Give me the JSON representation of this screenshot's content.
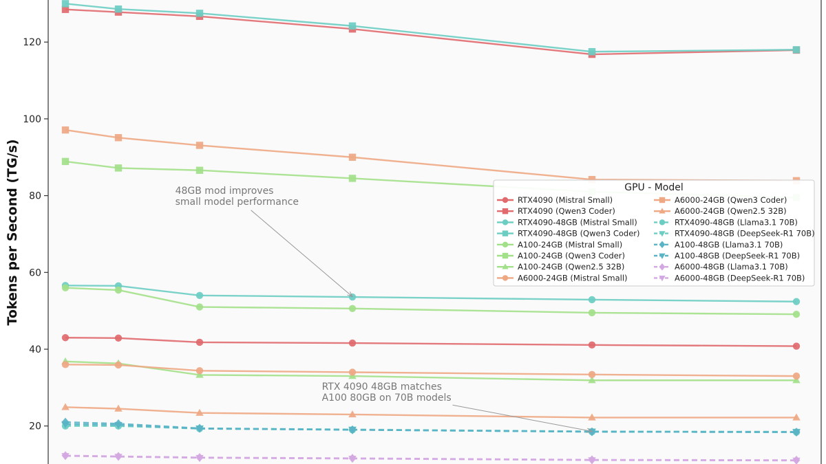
{
  "chart_data": {
    "type": "line",
    "ylabel": "Tokens per Second (TG/s)",
    "xlabel": "",
    "title": "",
    "ylim": [
      10,
      137
    ],
    "yticks": [
      20,
      40,
      60,
      80,
      100,
      120
    ],
    "grid": false,
    "x": [
      1,
      2,
      3,
      4,
      5,
      6
    ],
    "legend": {
      "title": "GPU - Model",
      "placement": "right",
      "columns": 2
    },
    "series": [
      {
        "name": "RTX4090 (Mistral Small)",
        "color": "#e06a6e",
        "marker": "circle",
        "dashed": false,
        "values": [
          43.0,
          42.9,
          41.8,
          41.6,
          41.1,
          40.8
        ]
      },
      {
        "name": "RTX4090 (Qwen3 Coder)",
        "color": "#e06a6e",
        "marker": "square",
        "dashed": false,
        "values": [
          128.5,
          127.8,
          126.7,
          123.4,
          116.8,
          117.9
        ]
      },
      {
        "name": "RTX4090-48GB (Mistral Small)",
        "color": "#6ccdc3",
        "marker": "circle",
        "dashed": false,
        "values": [
          56.6,
          56.5,
          54.0,
          53.6,
          52.9,
          52.4
        ]
      },
      {
        "name": "RTX4090-48GB (Qwen3 Coder)",
        "color": "#6ccdc3",
        "marker": "square",
        "dashed": false,
        "values": [
          130.0,
          128.6,
          127.5,
          124.2,
          117.5,
          118.0
        ]
      },
      {
        "name": "A100-24GB (Mistral Small)",
        "color": "#a3e08a",
        "marker": "circle",
        "dashed": false,
        "values": [
          56.0,
          55.4,
          51.0,
          50.6,
          49.5,
          49.1
        ]
      },
      {
        "name": "A100-24GB (Qwen3 Coder)",
        "color": "#a3e08a",
        "marker": "square",
        "dashed": false,
        "values": [
          88.9,
          87.2,
          86.6,
          84.5,
          81.0,
          79.5
        ]
      },
      {
        "name": "A100-24GB (Qwen2.5 32B)",
        "color": "#a3e08a",
        "marker": "triangle-up",
        "dashed": false,
        "values": [
          36.8,
          36.3,
          33.3,
          33.0,
          31.9,
          31.9
        ]
      },
      {
        "name": "A6000-24GB (Mistral Small)",
        "color": "#eea884",
        "marker": "circle",
        "dashed": false,
        "values": [
          36.0,
          35.9,
          34.4,
          34.0,
          33.4,
          33.0
        ]
      },
      {
        "name": "A6000-24GB (Qwen3 Coder)",
        "color": "#eea884",
        "marker": "square",
        "dashed": false,
        "values": [
          97.1,
          95.1,
          93.1,
          90.0,
          84.2,
          83.9
        ]
      },
      {
        "name": "A6000-24GB (Qwen2.5 32B)",
        "color": "#eea884",
        "marker": "triangle-up",
        "dashed": false,
        "values": [
          24.9,
          24.5,
          23.4,
          23.0,
          22.2,
          22.2
        ]
      },
      {
        "name": "RTX4090-48GB (Llama3.1 70B)",
        "color": "#6ccdc3",
        "marker": "circle",
        "dashed": true,
        "values": [
          20.0,
          20.0,
          19.3,
          19.0,
          18.5,
          18.4
        ]
      },
      {
        "name": "RTX4090-48GB (DeepSeek-R1 70B)",
        "color": "#6ccdc3",
        "marker": "triangle-down",
        "dashed": true,
        "values": [
          20.2,
          20.0,
          19.4,
          19.1,
          18.6,
          18.5
        ]
      },
      {
        "name": "A100-48GB (Llama3.1 70B)",
        "color": "#5ab4c6",
        "marker": "diamond",
        "dashed": true,
        "values": [
          21.0,
          20.6,
          19.4,
          19.0,
          18.5,
          18.4
        ]
      },
      {
        "name": "A100-48GB (DeepSeek-R1 70B)",
        "color": "#5ab4c6",
        "marker": "triangle-down",
        "dashed": true,
        "values": [
          20.5,
          20.3,
          19.3,
          19.0,
          18.5,
          18.4
        ]
      },
      {
        "name": "A6000-48GB (Llama3.1 70B)",
        "color": "#d4a8e2",
        "marker": "diamond",
        "dashed": true,
        "values": [
          12.3,
          12.1,
          11.8,
          11.6,
          11.2,
          11.1
        ]
      },
      {
        "name": "A6000-48GB (DeepSeek-R1 70B)",
        "color": "#d4a8e2",
        "marker": "triangle-down",
        "dashed": true,
        "values": [
          12.2,
          12.0,
          11.7,
          11.5,
          11.1,
          11.0
        ]
      }
    ],
    "annotations": [
      {
        "lines": [
          "48GB mod improves",
          "small model performance"
        ],
        "x": 2.7,
        "y": 80.5,
        "arrow_to_x": 4.0,
        "arrow_to_y": 53.7
      },
      {
        "lines": [
          "RTX 4090 48GB matches",
          "A100 80GB on 70B models"
        ],
        "x": 3.8,
        "y": 29.4,
        "arrow_to_x": 5.0,
        "arrow_to_y": 18.6
      }
    ]
  }
}
